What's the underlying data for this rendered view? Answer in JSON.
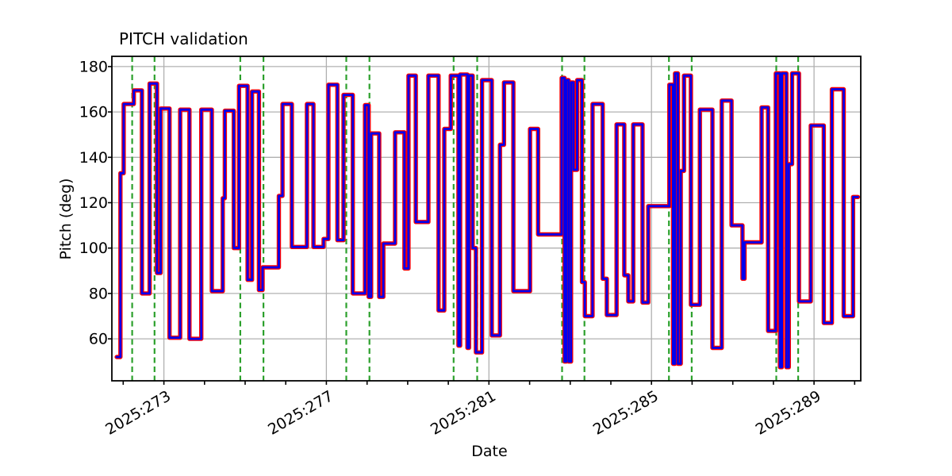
{
  "figure": {
    "title": "PITCH validation",
    "xlabel": "Date",
    "ylabel": "Pitch (deg)"
  },
  "chart_data": {
    "type": "line",
    "subtype": "step",
    "title": "PITCH validation",
    "xlabel": "Date",
    "ylabel": "Pitch (deg)",
    "x_unit": "year:day_of_year (2025)",
    "xlim": [
      271.72,
      290.15
    ],
    "ylim": [
      41.5,
      184.5
    ],
    "grid": true,
    "grid_color": "#b0b0b0",
    "background": "#ffffff",
    "x_major_ticks": [
      273,
      277,
      281,
      285,
      289
    ],
    "x_major_labels": [
      "2025:273",
      "2025:277",
      "2025:281",
      "2025:285",
      "2025:289"
    ],
    "x_minor_step": 1,
    "y_ticks": [
      60,
      80,
      100,
      120,
      140,
      160,
      180
    ],
    "series": [
      {
        "name": "reference-line-red",
        "color": "#ff0000",
        "width": 5.4,
        "values_ref": "steps"
      },
      {
        "name": "measured-line-blue",
        "color": "#0000ee",
        "width": 2.8,
        "values_ref": "steps"
      }
    ],
    "steps": [
      [
        271.84,
        52
      ],
      [
        271.93,
        133
      ],
      [
        272.01,
        163.5
      ],
      [
        272.26,
        169.5
      ],
      [
        272.46,
        80
      ],
      [
        272.65,
        172.5
      ],
      [
        272.83,
        89
      ],
      [
        272.92,
        161.5
      ],
      [
        273.14,
        60.5
      ],
      [
        273.4,
        161
      ],
      [
        273.63,
        60
      ],
      [
        273.92,
        161
      ],
      [
        274.18,
        81
      ],
      [
        274.45,
        122
      ],
      [
        274.5,
        160.5
      ],
      [
        274.72,
        100
      ],
      [
        274.85,
        171.5
      ],
      [
        275.06,
        86
      ],
      [
        275.17,
        169
      ],
      [
        275.34,
        81.5
      ],
      [
        275.43,
        91.5
      ],
      [
        275.83,
        123
      ],
      [
        275.92,
        163.5
      ],
      [
        276.15,
        100.5
      ],
      [
        276.52,
        163.5
      ],
      [
        276.68,
        100.5
      ],
      [
        276.93,
        104
      ],
      [
        277.05,
        172
      ],
      [
        277.27,
        103.5
      ],
      [
        277.42,
        167.5
      ],
      [
        277.65,
        80
      ],
      [
        277.95,
        163
      ],
      [
        278.04,
        78.5
      ],
      [
        278.1,
        150.5
      ],
      [
        278.3,
        78.5
      ],
      [
        278.4,
        102
      ],
      [
        278.69,
        151
      ],
      [
        278.92,
        91
      ],
      [
        279.02,
        176
      ],
      [
        279.2,
        111.5
      ],
      [
        279.51,
        176
      ],
      [
        279.76,
        72.5
      ],
      [
        279.9,
        152.5
      ],
      [
        280.06,
        176
      ],
      [
        280.25,
        57
      ],
      [
        280.29,
        176.5
      ],
      [
        280.47,
        56
      ],
      [
        280.51,
        176
      ],
      [
        280.6,
        100
      ],
      [
        280.68,
        54
      ],
      [
        280.83,
        174
      ],
      [
        281.07,
        61.5
      ],
      [
        281.27,
        145.5
      ],
      [
        281.37,
        173
      ],
      [
        281.6,
        81
      ],
      [
        282.01,
        152.5
      ],
      [
        282.21,
        106
      ],
      [
        282.79,
        175
      ],
      [
        282.86,
        50
      ],
      [
        282.9,
        174
      ],
      [
        282.96,
        50
      ],
      [
        283.02,
        173
      ],
      [
        283.08,
        134.5
      ],
      [
        283.17,
        174
      ],
      [
        283.29,
        85
      ],
      [
        283.36,
        70
      ],
      [
        283.55,
        163.5
      ],
      [
        283.8,
        86.5
      ],
      [
        283.9,
        70.5
      ],
      [
        284.14,
        154.5
      ],
      [
        284.33,
        88
      ],
      [
        284.43,
        76.5
      ],
      [
        284.55,
        154.5
      ],
      [
        284.78,
        76
      ],
      [
        284.92,
        118.5
      ],
      [
        285.44,
        172
      ],
      [
        285.53,
        49
      ],
      [
        285.58,
        177
      ],
      [
        285.65,
        49
      ],
      [
        285.72,
        134
      ],
      [
        285.8,
        176
      ],
      [
        285.97,
        75
      ],
      [
        286.19,
        161
      ],
      [
        286.5,
        56
      ],
      [
        286.73,
        165
      ],
      [
        286.97,
        110
      ],
      [
        287.24,
        86.5
      ],
      [
        287.29,
        102.5
      ],
      [
        287.71,
        162
      ],
      [
        287.87,
        63.5
      ],
      [
        288.06,
        177
      ],
      [
        288.16,
        47.5
      ],
      [
        288.21,
        177
      ],
      [
        288.32,
        47.5
      ],
      [
        288.38,
        137
      ],
      [
        288.46,
        177
      ],
      [
        288.63,
        76.5
      ],
      [
        288.92,
        154
      ],
      [
        289.24,
        67
      ],
      [
        289.44,
        170
      ],
      [
        289.73,
        70
      ],
      [
        289.96,
        122.5
      ],
      [
        290.08,
        122.5
      ]
    ],
    "event_lines": {
      "color": "#2ca02c",
      "style": "dashed",
      "x": [
        272.22,
        272.77,
        274.88,
        275.45,
        277.49,
        278.06,
        280.13,
        280.71,
        282.8,
        283.35,
        285.43,
        285.99,
        288.07,
        288.61
      ]
    },
    "legend": null
  }
}
